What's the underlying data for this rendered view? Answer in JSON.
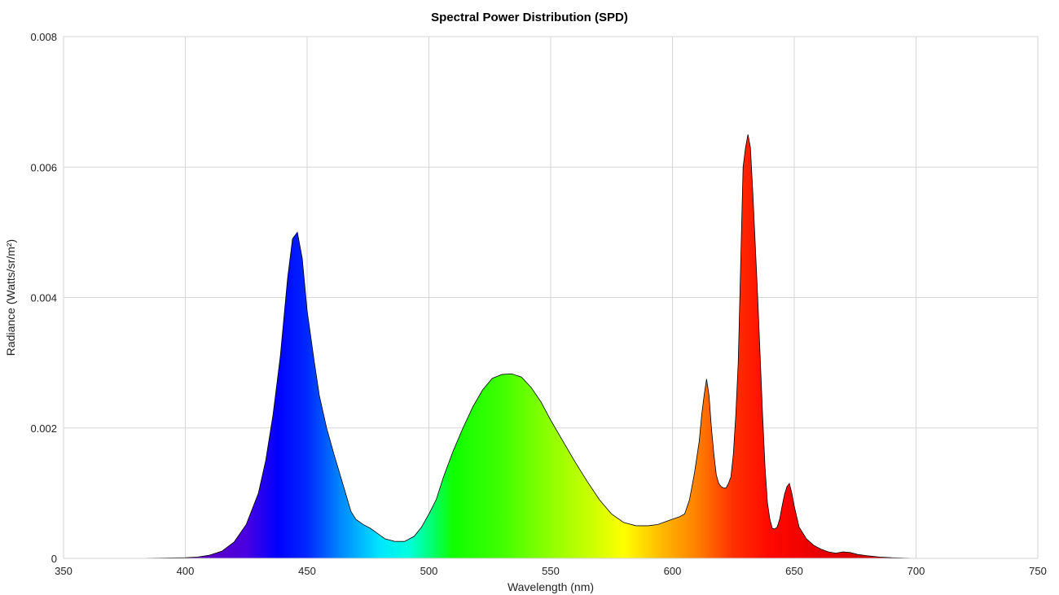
{
  "chart_data": {
    "type": "area",
    "title": "Spectral Power Distribution (SPD)",
    "xlabel": "Wavelength (nm)",
    "ylabel": "Radiance (Watts/sr/m²)",
    "xlim": [
      350,
      750
    ],
    "ylim": [
      0,
      0.008
    ],
    "x_ticks": [
      350,
      400,
      450,
      500,
      550,
      600,
      650,
      700,
      750
    ],
    "y_ticks": [
      0,
      0.002,
      0.004,
      0.006,
      0.008
    ],
    "x_tick_labels": [
      "350",
      "400",
      "450",
      "500",
      "550",
      "600",
      "650",
      "700",
      "750"
    ],
    "y_tick_labels": [
      "0",
      "0.002",
      "0.004",
      "0.006",
      "0.008"
    ],
    "grid": true,
    "fill": "spectral-gradient",
    "series": [
      {
        "x": [
          350,
          380,
          400,
          405,
          410,
          415,
          420,
          425,
          430,
          433,
          436,
          439,
          442,
          444,
          446,
          448,
          450,
          453,
          455,
          458,
          461,
          465,
          468,
          470,
          473,
          476,
          479,
          482,
          486,
          490,
          494,
          497,
          500,
          503,
          506,
          510,
          514,
          518,
          522,
          526,
          530,
          534,
          538,
          542,
          546,
          550,
          555,
          560,
          565,
          570,
          575,
          580,
          585,
          590,
          594,
          597,
          600,
          603,
          605,
          607,
          609,
          611,
          612,
          613,
          614,
          615,
          616,
          617,
          618,
          619,
          620,
          621,
          622,
          623,
          624,
          625,
          626,
          627,
          628,
          629,
          630,
          631,
          632,
          633,
          634,
          635,
          636,
          637,
          638,
          639,
          640,
          641,
          642,
          643,
          644,
          645,
          646,
          647,
          648,
          649,
          650,
          652,
          655,
          658,
          661,
          664,
          667,
          670,
          673,
          676,
          680,
          685,
          690,
          695,
          700,
          710,
          720,
          750
        ],
        "y": [
          0,
          0,
          1e-05,
          2e-05,
          5e-05,
          0.00011,
          0.00025,
          0.00052,
          0.001,
          0.0015,
          0.0022,
          0.0031,
          0.0043,
          0.0049,
          0.005,
          0.0046,
          0.0038,
          0.003,
          0.0025,
          0.002,
          0.0016,
          0.0011,
          0.00072,
          0.0006,
          0.00052,
          0.00046,
          0.00038,
          0.0003,
          0.00026,
          0.00026,
          0.00034,
          0.00048,
          0.00068,
          0.0009,
          0.00125,
          0.00165,
          0.002,
          0.00232,
          0.00258,
          0.00276,
          0.00282,
          0.00283,
          0.00278,
          0.00262,
          0.0024,
          0.00212,
          0.0018,
          0.00148,
          0.00118,
          0.0009,
          0.00068,
          0.00055,
          0.0005,
          0.0005,
          0.00052,
          0.00056,
          0.0006,
          0.00064,
          0.00068,
          0.0009,
          0.0013,
          0.0018,
          0.0022,
          0.0025,
          0.00275,
          0.0025,
          0.002,
          0.0016,
          0.00128,
          0.00115,
          0.0011,
          0.00108,
          0.00108,
          0.00115,
          0.00125,
          0.0016,
          0.0022,
          0.003,
          0.0045,
          0.006,
          0.0063,
          0.0065,
          0.0063,
          0.0056,
          0.0048,
          0.004,
          0.0031,
          0.0022,
          0.0014,
          0.00085,
          0.0006,
          0.00046,
          0.00045,
          0.00048,
          0.0006,
          0.0008,
          0.00098,
          0.0011,
          0.00115,
          0.001,
          0.0008,
          0.00048,
          0.0003,
          0.0002,
          0.00014,
          0.0001,
          8e-05,
          0.0001,
          9e-05,
          6e-05,
          4e-05,
          2e-05,
          1e-05,
          5e-06,
          0,
          0,
          0,
          0
        ]
      }
    ]
  }
}
